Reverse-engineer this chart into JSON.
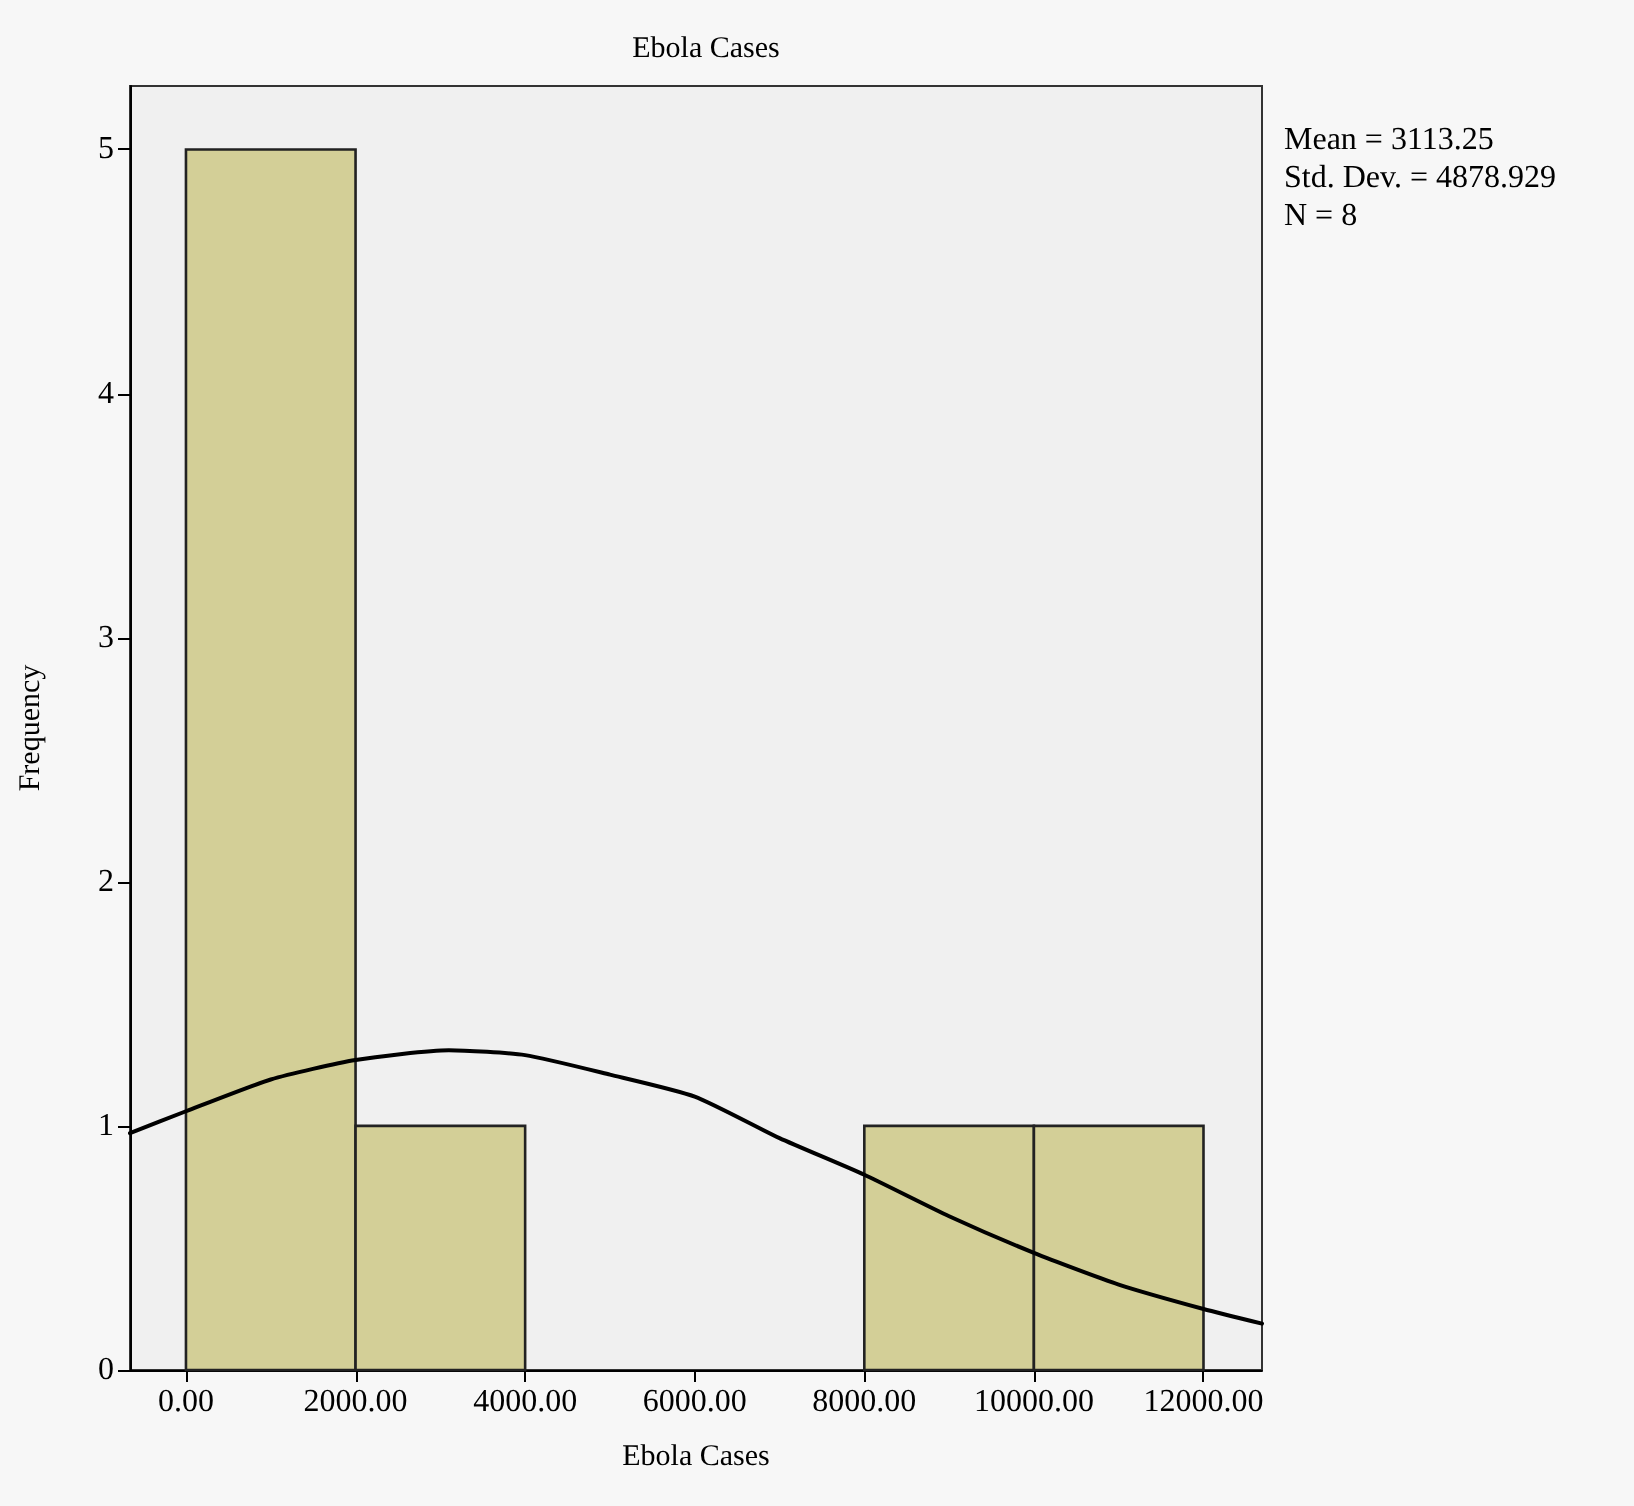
{
  "chart_data": {
    "type": "histogram",
    "title": "Ebola Cases",
    "xlabel": "Ebola Cases",
    "ylabel": "Frequency",
    "annotations": [
      "Mean = 3113.25",
      "Std. Dev. = 4878.929",
      "N = 8"
    ],
    "xlim": [
      -660,
      12690
    ],
    "ylim": [
      0,
      5.26
    ],
    "xticks": [
      {
        "value": 0,
        "label": "0.00"
      },
      {
        "value": 2000,
        "label": "2000.00"
      },
      {
        "value": 4000,
        "label": "4000.00"
      },
      {
        "value": 6000,
        "label": "6000.00"
      },
      {
        "value": 8000,
        "label": "8000.00"
      },
      {
        "value": 10000,
        "label": "10000.00"
      },
      {
        "value": 12000,
        "label": "12000.00"
      }
    ],
    "yticks": [
      0,
      1,
      2,
      3,
      4,
      5
    ],
    "grid": false,
    "series": [
      {
        "color": "#d3cf97",
        "bins": [
          0,
          2000,
          4000,
          6000,
          8000,
          10000,
          12000
        ],
        "values": [
          5,
          1,
          0,
          0,
          1,
          1
        ]
      },
      {
        "type": "line",
        "color": "#000000",
        "marker": "none",
        "x": [
          -660,
          0,
          1000,
          2000,
          3100,
          4000,
          5000,
          6000,
          7000,
          8000,
          9000,
          10000,
          11000,
          12000,
          12690
        ],
        "values": [
          0.97,
          1.06,
          1.19,
          1.27,
          1.31,
          1.29,
          1.21,
          1.12,
          0.95,
          0.8,
          0.63,
          0.48,
          0.35,
          0.25,
          0.19
        ]
      }
    ]
  }
}
